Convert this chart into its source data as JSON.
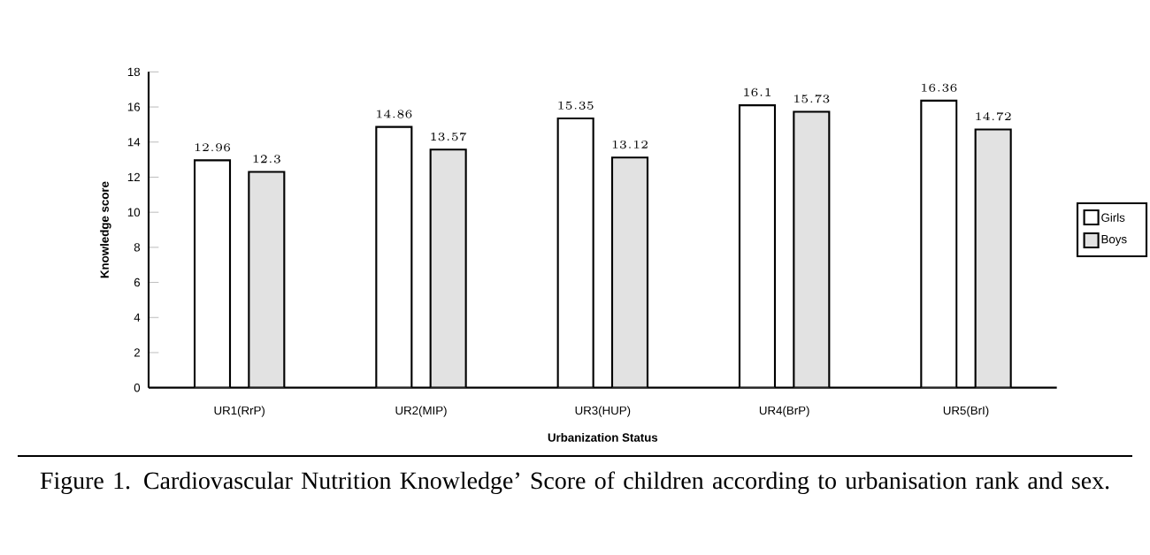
{
  "chart_data": {
    "type": "bar",
    "xlabel": "Urbanization Status",
    "ylabel": "Knowledge score",
    "categories": [
      "UR1(RrP)",
      "UR2(MIP)",
      "UR3(HUP)",
      "UR4(BrP)",
      "UR5(BrI)"
    ],
    "series": [
      {
        "name": "Girls",
        "color": "#ffffff",
        "values": [
          12.96,
          14.86,
          15.35,
          16.1,
          16.36
        ]
      },
      {
        "name": "Boys",
        "color": "#e2e2e2",
        "values": [
          12.3,
          13.57,
          13.12,
          15.73,
          14.72
        ]
      }
    ],
    "ylim": [
      0,
      18
    ],
    "yticks": [
      0,
      2,
      4,
      6,
      8,
      10,
      12,
      14,
      16,
      18
    ],
    "data_labels": true,
    "legend": "right",
    "annotations": [
      "Figure 1. Cardiovascular Nutrition Knowledge’ Score of children according to urbanisation rank and sex."
    ]
  }
}
